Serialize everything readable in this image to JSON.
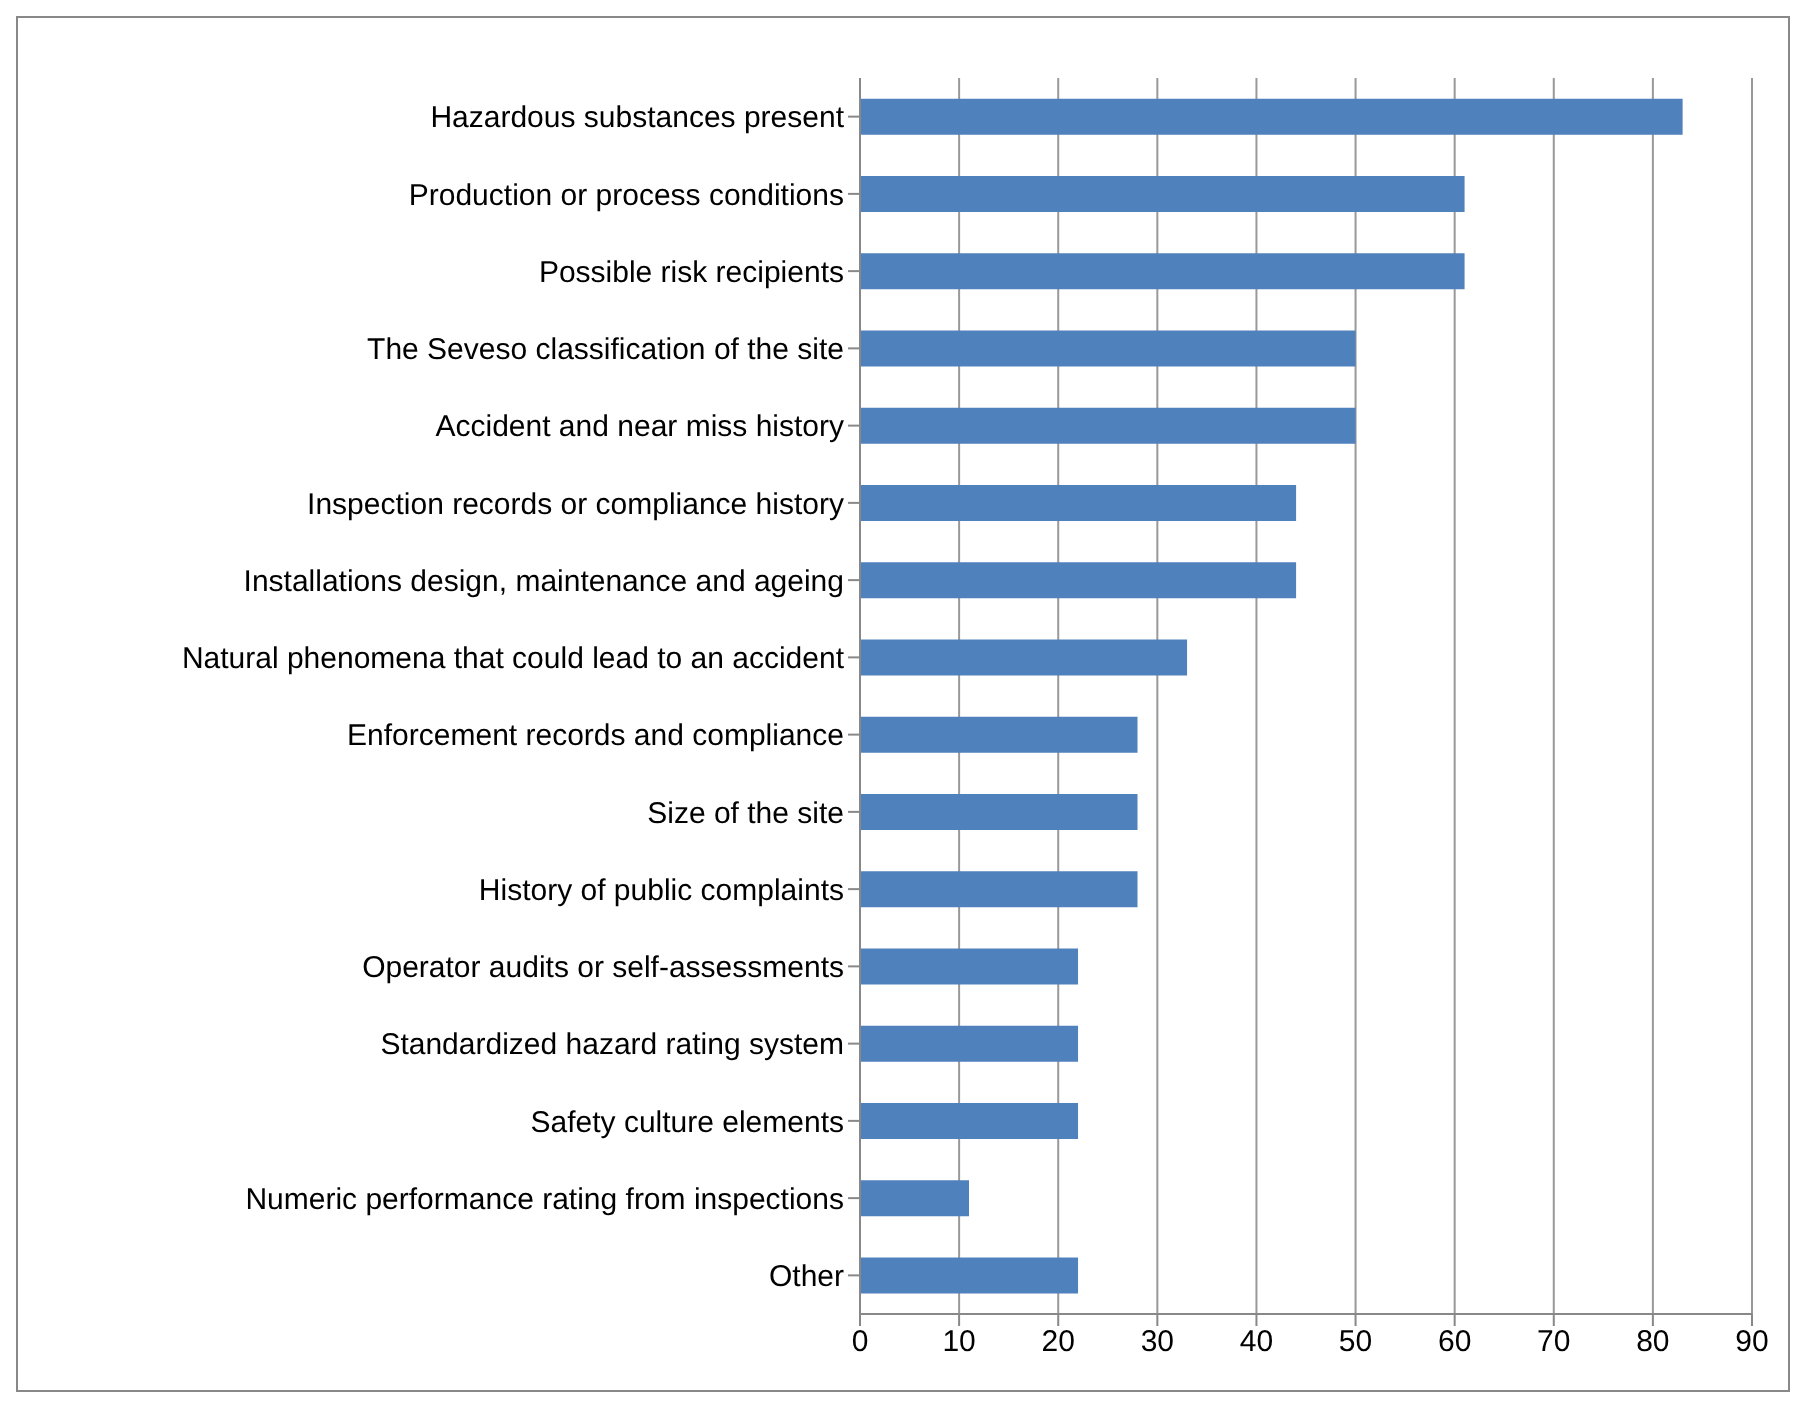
{
  "chart_data": {
    "type": "bar",
    "orientation": "horizontal",
    "categories": [
      "Hazardous substances present",
      "Production or process conditions",
      "Possible risk recipients",
      "The Seveso classification of the site",
      "Accident and near miss history",
      "Inspection records or compliance history",
      "Installations design, maintenance and ageing",
      "Natural phenomena that could lead to an accident",
      "Enforcement records and compliance",
      "Size of the site",
      "History of public complaints",
      "Operator audits or self-assessments",
      "Standardized hazard rating system",
      "Safety culture elements",
      "Numeric performance rating from inspections",
      "Other"
    ],
    "values": [
      83,
      61,
      61,
      50,
      50,
      44,
      44,
      33,
      28,
      28,
      28,
      22,
      22,
      22,
      11,
      22
    ],
    "color": "#4f81bd",
    "xlim": [
      0,
      90
    ],
    "xticks": [
      0,
      10,
      20,
      30,
      40,
      50,
      60,
      70,
      80,
      90
    ],
    "grid": "x"
  }
}
